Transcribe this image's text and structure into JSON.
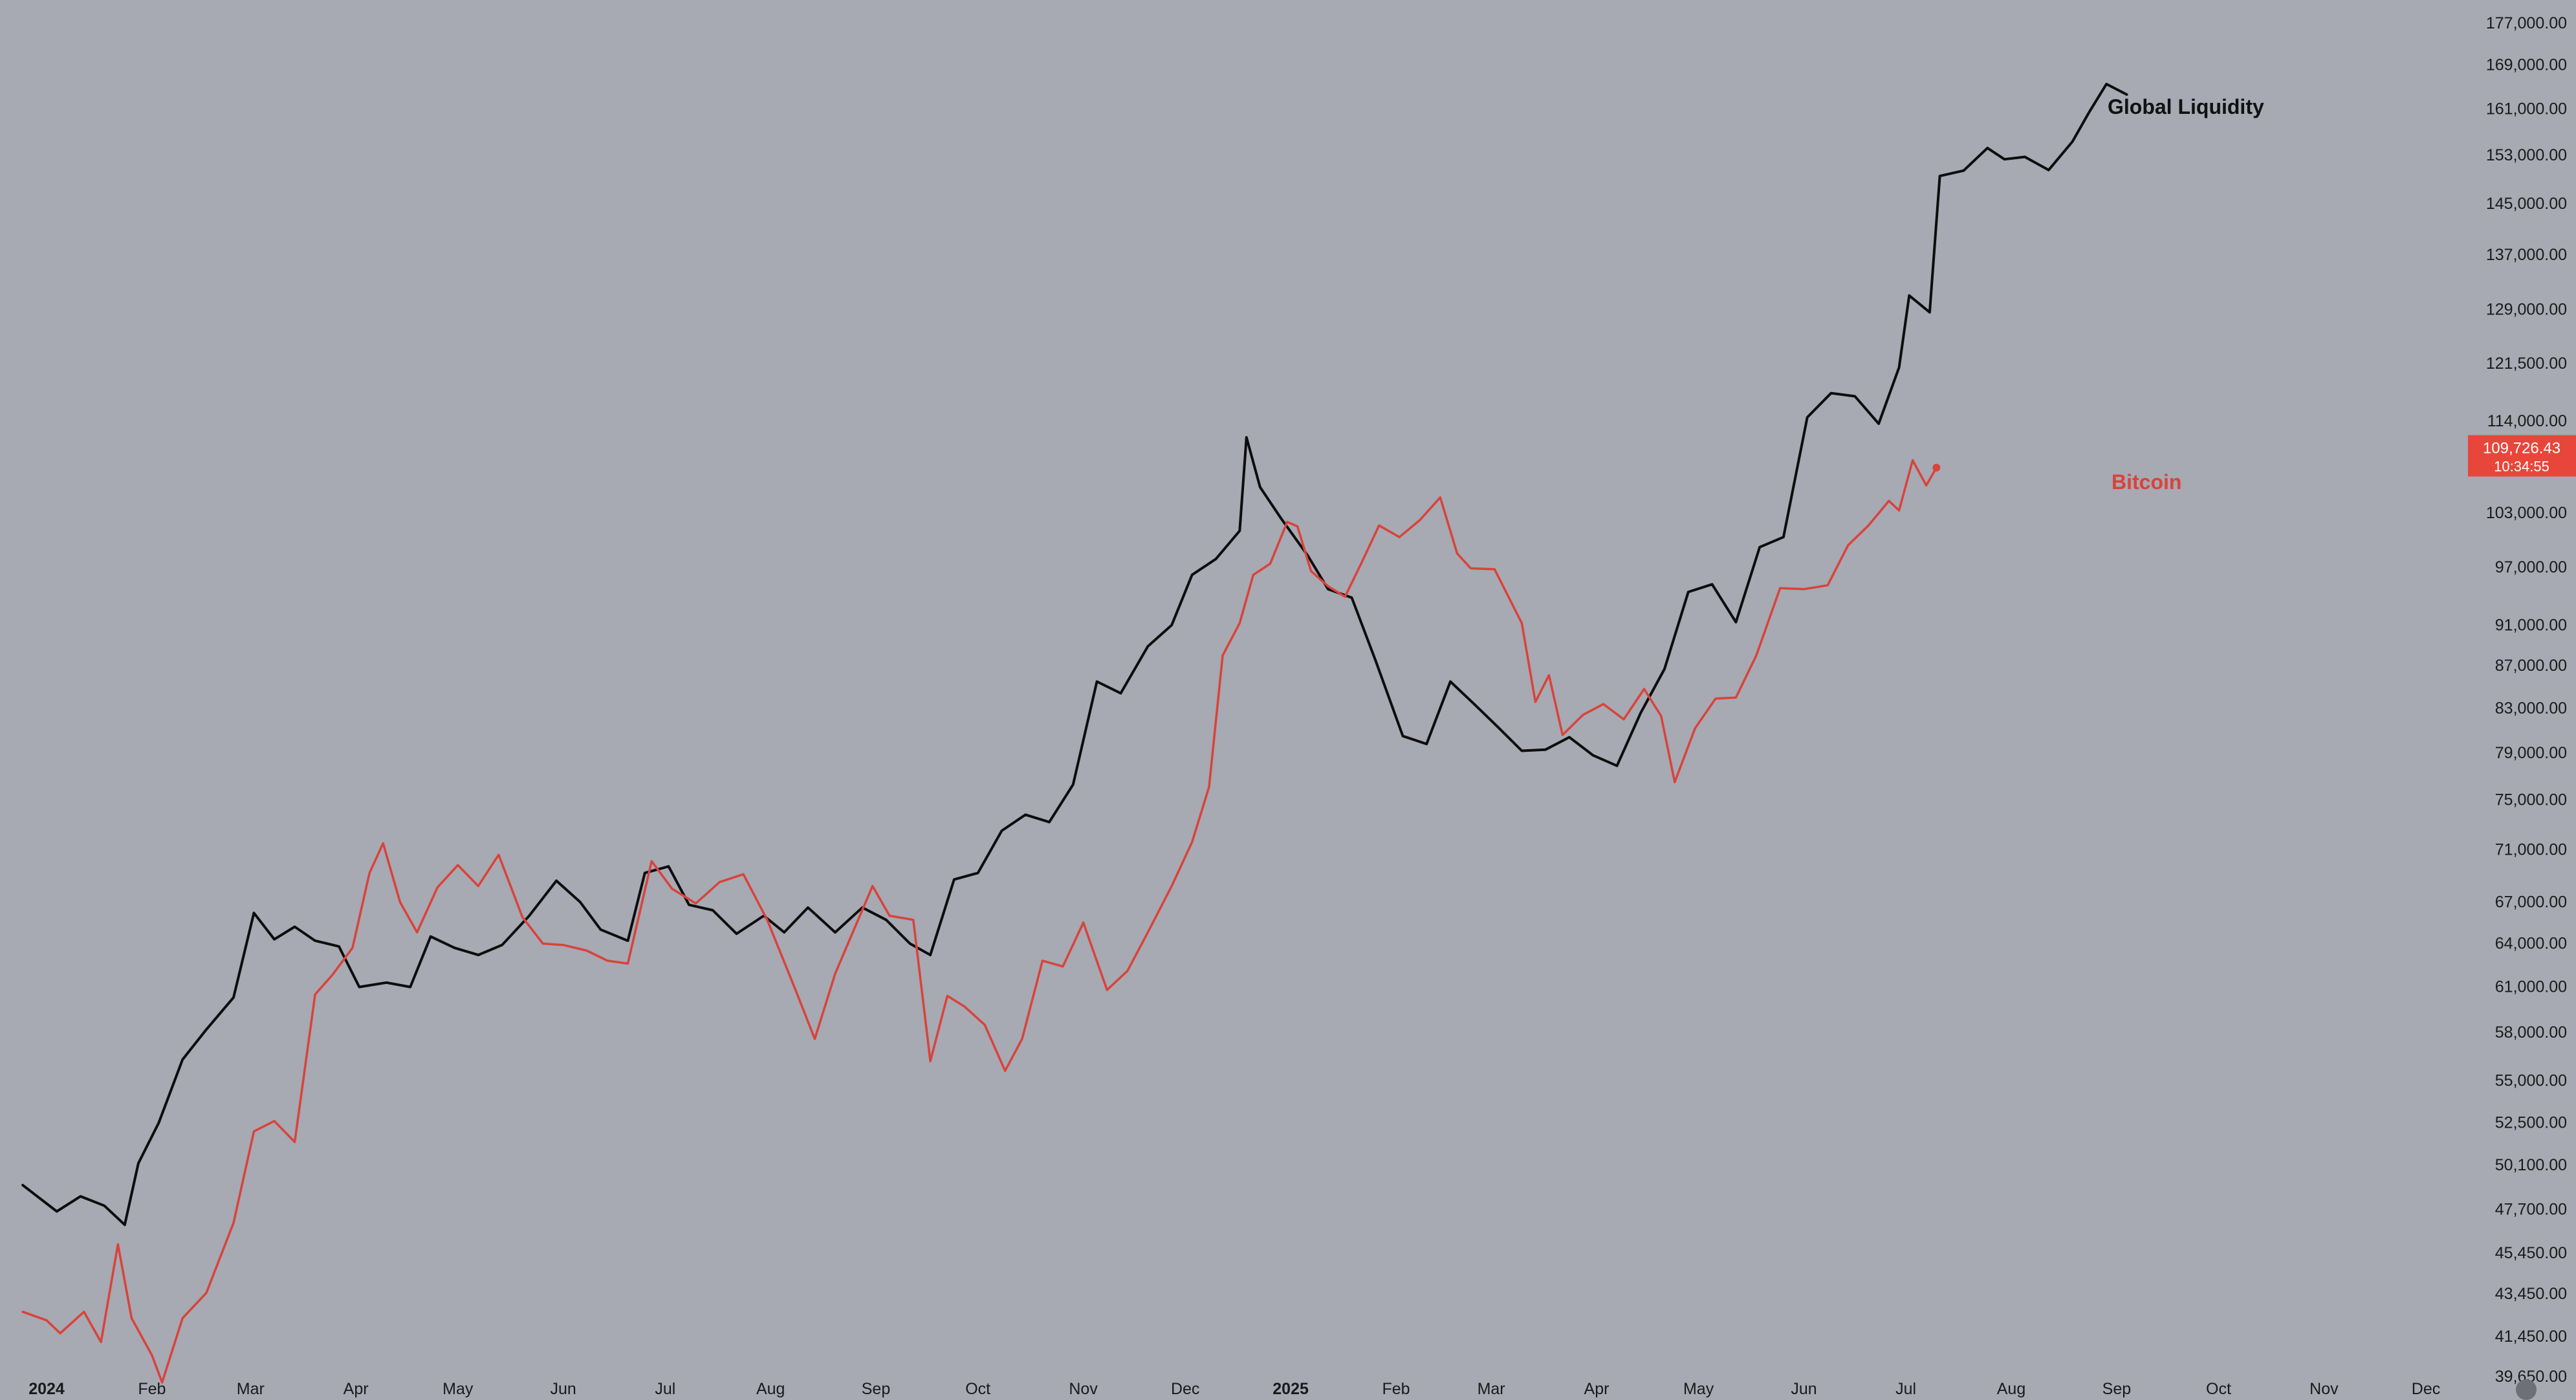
{
  "chart_data": {
    "type": "line",
    "x_range": [
      "2024-01-01",
      "2025-12-31"
    ],
    "y_scale": "log",
    "ylim": [
      38700,
      179000
    ],
    "grid": false,
    "background_color": "#a7a9b3",
    "x_ticks": [
      {
        "date": "2024-01-01",
        "label": "2024",
        "bold": true
      },
      {
        "date": "2024-02-01",
        "label": "Feb"
      },
      {
        "date": "2024-03-01",
        "label": "Mar"
      },
      {
        "date": "2024-04-01",
        "label": "Apr"
      },
      {
        "date": "2024-05-01",
        "label": "May"
      },
      {
        "date": "2024-06-01",
        "label": "Jun"
      },
      {
        "date": "2024-07-01",
        "label": "Jul"
      },
      {
        "date": "2024-08-01",
        "label": "Aug"
      },
      {
        "date": "2024-09-01",
        "label": "Sep"
      },
      {
        "date": "2024-10-01",
        "label": "Oct"
      },
      {
        "date": "2024-11-01",
        "label": "Nov"
      },
      {
        "date": "2024-12-01",
        "label": "Dec"
      },
      {
        "date": "2025-01-01",
        "label": "2025",
        "bold": true
      },
      {
        "date": "2025-02-01",
        "label": "Feb"
      },
      {
        "date": "2025-03-01",
        "label": "Mar"
      },
      {
        "date": "2025-04-01",
        "label": "Apr"
      },
      {
        "date": "2025-05-01",
        "label": "May"
      },
      {
        "date": "2025-06-01",
        "label": "Jun"
      },
      {
        "date": "2025-07-01",
        "label": "Jul"
      },
      {
        "date": "2025-08-01",
        "label": "Aug"
      },
      {
        "date": "2025-09-01",
        "label": "Sep"
      },
      {
        "date": "2025-10-01",
        "label": "Oct"
      },
      {
        "date": "2025-11-01",
        "label": "Nov"
      },
      {
        "date": "2025-12-01",
        "label": "Dec"
      }
    ],
    "y_ticks": [
      {
        "value": 177000,
        "label": "177,000.00"
      },
      {
        "value": 169000,
        "label": "169,000.00"
      },
      {
        "value": 161000,
        "label": "161,000.00"
      },
      {
        "value": 153000,
        "label": "153,000.00"
      },
      {
        "value": 145000,
        "label": "145,000.00"
      },
      {
        "value": 137000,
        "label": "137,000.00"
      },
      {
        "value": 129000,
        "label": "129,000.00"
      },
      {
        "value": 121500,
        "label": "121,500.00"
      },
      {
        "value": 114000,
        "label": "114,000.00"
      },
      {
        "value": 103000,
        "label": "103,000.00"
      },
      {
        "value": 97000,
        "label": "97,000.00"
      },
      {
        "value": 91000,
        "label": "91,000.00"
      },
      {
        "value": 87000,
        "label": "87,000.00"
      },
      {
        "value": 83000,
        "label": "83,000.00"
      },
      {
        "value": 79000,
        "label": "79,000.00"
      },
      {
        "value": 75000,
        "label": "75,000.00"
      },
      {
        "value": 71000,
        "label": "71,000.00"
      },
      {
        "value": 67000,
        "label": "67,000.00"
      },
      {
        "value": 64000,
        "label": "64,000.00"
      },
      {
        "value": 61000,
        "label": "61,000.00"
      },
      {
        "value": 58000,
        "label": "58,000.00"
      },
      {
        "value": 55000,
        "label": "55,000.00"
      },
      {
        "value": 52500,
        "label": "52,500.00"
      },
      {
        "value": 50100,
        "label": "50,100.00"
      },
      {
        "value": 47700,
        "label": "47,700.00"
      },
      {
        "value": 45450,
        "label": "45,450.00"
      },
      {
        "value": 43450,
        "label": "43,450.00"
      },
      {
        "value": 41450,
        "label": "41,450.00"
      },
      {
        "value": 39650,
        "label": "39,650.00"
      }
    ],
    "price_tag": {
      "value": 109726.43,
      "label": "109,726.43",
      "countdown": "10:34:55",
      "color": "#e8463a"
    },
    "series": [
      {
        "name": "Global Liquidity",
        "color": "#0d0d0d",
        "points": [
          [
            "2023-12-25",
            49000
          ],
          [
            "2024-01-04",
            47600
          ],
          [
            "2024-01-11",
            48400
          ],
          [
            "2024-01-18",
            47900
          ],
          [
            "2024-01-24",
            46900
          ],
          [
            "2024-01-28",
            50200
          ],
          [
            "2024-02-03",
            52500
          ],
          [
            "2024-02-10",
            56300
          ],
          [
            "2024-02-17",
            58200
          ],
          [
            "2024-02-25",
            60300
          ],
          [
            "2024-03-02",
            66200
          ],
          [
            "2024-03-08",
            64300
          ],
          [
            "2024-03-14",
            65200
          ],
          [
            "2024-03-20",
            64200
          ],
          [
            "2024-03-27",
            63800
          ],
          [
            "2024-04-02",
            61000
          ],
          [
            "2024-04-10",
            61300
          ],
          [
            "2024-04-17",
            61000
          ],
          [
            "2024-04-23",
            64500
          ],
          [
            "2024-04-30",
            63700
          ],
          [
            "2024-05-07",
            63200
          ],
          [
            "2024-05-14",
            63900
          ],
          [
            "2024-05-22",
            66000
          ],
          [
            "2024-05-30",
            68600
          ],
          [
            "2024-06-06",
            67000
          ],
          [
            "2024-06-12",
            65000
          ],
          [
            "2024-06-20",
            64200
          ],
          [
            "2024-06-25",
            69200
          ],
          [
            "2024-07-02",
            69700
          ],
          [
            "2024-07-08",
            66800
          ],
          [
            "2024-07-15",
            66400
          ],
          [
            "2024-07-22",
            64700
          ],
          [
            "2024-07-30",
            66000
          ],
          [
            "2024-08-05",
            64800
          ],
          [
            "2024-08-12",
            66600
          ],
          [
            "2024-08-20",
            64800
          ],
          [
            "2024-08-28",
            66600
          ],
          [
            "2024-09-04",
            65700
          ],
          [
            "2024-09-11",
            64000
          ],
          [
            "2024-09-17",
            63200
          ],
          [
            "2024-09-24",
            68700
          ],
          [
            "2024-10-01",
            69200
          ],
          [
            "2024-10-08",
            72500
          ],
          [
            "2024-10-15",
            73800
          ],
          [
            "2024-10-22",
            73200
          ],
          [
            "2024-10-29",
            76300
          ],
          [
            "2024-11-05",
            85500
          ],
          [
            "2024-11-12",
            84400
          ],
          [
            "2024-11-20",
            88900
          ],
          [
            "2024-11-27",
            91000
          ],
          [
            "2024-12-03",
            96200
          ],
          [
            "2024-12-10",
            97900
          ],
          [
            "2024-12-17",
            101000
          ],
          [
            "2024-12-19",
            112000
          ],
          [
            "2024-12-23",
            106000
          ],
          [
            "2024-12-29",
            102500
          ],
          [
            "2025-01-06",
            98300
          ],
          [
            "2025-01-12",
            94700
          ],
          [
            "2025-01-19",
            93800
          ],
          [
            "2025-01-26",
            87500
          ],
          [
            "2025-02-03",
            80500
          ],
          [
            "2025-02-10",
            79800
          ],
          [
            "2025-02-17",
            85500
          ],
          [
            "2025-02-24",
            83400
          ],
          [
            "2025-03-03",
            81300
          ],
          [
            "2025-03-10",
            79200
          ],
          [
            "2025-03-17",
            79300
          ],
          [
            "2025-03-24",
            80400
          ],
          [
            "2025-03-31",
            78800
          ],
          [
            "2025-04-07",
            77900
          ],
          [
            "2025-04-14",
            82600
          ],
          [
            "2025-04-21",
            86700
          ],
          [
            "2025-04-28",
            94400
          ],
          [
            "2025-05-05",
            95200
          ],
          [
            "2025-05-12",
            91300
          ],
          [
            "2025-05-19",
            99200
          ],
          [
            "2025-05-26",
            100300
          ],
          [
            "2025-06-02",
            114500
          ],
          [
            "2025-06-09",
            117600
          ],
          [
            "2025-06-16",
            117200
          ],
          [
            "2025-06-23",
            113700
          ],
          [
            "2025-06-29",
            121000
          ],
          [
            "2025-07-02",
            131000
          ],
          [
            "2025-07-08",
            128600
          ],
          [
            "2025-07-11",
            149500
          ],
          [
            "2025-07-18",
            150400
          ],
          [
            "2025-07-25",
            154200
          ],
          [
            "2025-07-30",
            152300
          ],
          [
            "2025-08-05",
            152700
          ],
          [
            "2025-08-12",
            150500
          ],
          [
            "2025-08-19",
            155300
          ],
          [
            "2025-08-24",
            160500
          ],
          [
            "2025-08-29",
            165500
          ],
          [
            "2025-09-04",
            163600
          ]
        ]
      },
      {
        "name": "Bitcoin",
        "color": "#d9433a",
        "points": [
          [
            "2023-12-25",
            42600
          ],
          [
            "2024-01-01",
            42200
          ],
          [
            "2024-01-05",
            41600
          ],
          [
            "2024-01-12",
            42600
          ],
          [
            "2024-01-17",
            41200
          ],
          [
            "2024-01-22",
            45900
          ],
          [
            "2024-01-26",
            42300
          ],
          [
            "2024-02-01",
            40600
          ],
          [
            "2024-02-04",
            39400
          ],
          [
            "2024-02-10",
            42300
          ],
          [
            "2024-02-17",
            43500
          ],
          [
            "2024-02-25",
            47000
          ],
          [
            "2024-03-02",
            52000
          ],
          [
            "2024-03-08",
            52600
          ],
          [
            "2024-03-14",
            51400
          ],
          [
            "2024-03-20",
            60500
          ],
          [
            "2024-03-25",
            61800
          ],
          [
            "2024-03-31",
            63700
          ],
          [
            "2024-04-05",
            69200
          ],
          [
            "2024-04-09",
            71500
          ],
          [
            "2024-04-14",
            67000
          ],
          [
            "2024-04-19",
            64800
          ],
          [
            "2024-04-25",
            68100
          ],
          [
            "2024-05-01",
            69800
          ],
          [
            "2024-05-07",
            68200
          ],
          [
            "2024-05-13",
            70600
          ],
          [
            "2024-05-20",
            65900
          ],
          [
            "2024-05-26",
            64000
          ],
          [
            "2024-06-01",
            63900
          ],
          [
            "2024-06-08",
            63500
          ],
          [
            "2024-06-14",
            62800
          ],
          [
            "2024-06-20",
            62600
          ],
          [
            "2024-06-27",
            70100
          ],
          [
            "2024-07-03",
            68000
          ],
          [
            "2024-07-10",
            66900
          ],
          [
            "2024-07-17",
            68500
          ],
          [
            "2024-07-24",
            69100
          ],
          [
            "2024-07-31",
            65700
          ],
          [
            "2024-08-08",
            61000
          ],
          [
            "2024-08-14",
            57600
          ],
          [
            "2024-08-20",
            61900
          ],
          [
            "2024-08-25",
            64700
          ],
          [
            "2024-08-31",
            68200
          ],
          [
            "2024-09-05",
            66000
          ],
          [
            "2024-09-12",
            65700
          ],
          [
            "2024-09-17",
            56200
          ],
          [
            "2024-09-22",
            60400
          ],
          [
            "2024-09-27",
            59700
          ],
          [
            "2024-10-03",
            58500
          ],
          [
            "2024-10-09",
            55600
          ],
          [
            "2024-10-14",
            57600
          ],
          [
            "2024-10-20",
            62800
          ],
          [
            "2024-10-26",
            62400
          ],
          [
            "2024-11-01",
            65500
          ],
          [
            "2024-11-08",
            60800
          ],
          [
            "2024-11-14",
            62100
          ],
          [
            "2024-11-20",
            64800
          ],
          [
            "2024-11-27",
            68200
          ],
          [
            "2024-12-03",
            71600
          ],
          [
            "2024-12-08",
            76100
          ],
          [
            "2024-12-12",
            88000
          ],
          [
            "2024-12-17",
            91200
          ],
          [
            "2024-12-21",
            96200
          ],
          [
            "2024-12-26",
            97400
          ],
          [
            "2024-12-31",
            102000
          ],
          [
            "2025-01-03",
            101500
          ],
          [
            "2025-01-07",
            96600
          ],
          [
            "2025-01-12",
            95000
          ],
          [
            "2025-01-17",
            93900
          ],
          [
            "2025-01-22",
            97600
          ],
          [
            "2025-01-27",
            101600
          ],
          [
            "2025-02-02",
            100300
          ],
          [
            "2025-02-08",
            102200
          ],
          [
            "2025-02-14",
            104800
          ],
          [
            "2025-02-19",
            98500
          ],
          [
            "2025-02-23",
            96900
          ],
          [
            "2025-03-02",
            96800
          ],
          [
            "2025-03-10",
            91200
          ],
          [
            "2025-03-14",
            83600
          ],
          [
            "2025-03-18",
            86100
          ],
          [
            "2025-03-22",
            80600
          ],
          [
            "2025-03-28",
            82400
          ],
          [
            "2025-04-03",
            83400
          ],
          [
            "2025-04-09",
            82000
          ],
          [
            "2025-04-15",
            84800
          ],
          [
            "2025-04-20",
            82300
          ],
          [
            "2025-04-24",
            76500
          ],
          [
            "2025-04-30",
            81200
          ],
          [
            "2025-05-06",
            83900
          ],
          [
            "2025-05-12",
            84000
          ],
          [
            "2025-05-18",
            88000
          ],
          [
            "2025-05-25",
            94800
          ],
          [
            "2025-06-01",
            94700
          ],
          [
            "2025-06-08",
            95100
          ],
          [
            "2025-06-14",
            99400
          ],
          [
            "2025-06-20",
            101600
          ],
          [
            "2025-06-26",
            104400
          ],
          [
            "2025-06-29",
            103300
          ],
          [
            "2025-07-03",
            109200
          ],
          [
            "2025-07-07",
            106200
          ],
          [
            "2025-07-10",
            108300
          ]
        ]
      }
    ]
  },
  "labels": {
    "global_liquidity": "Global Liquidity",
    "bitcoin": "Bitcoin"
  }
}
